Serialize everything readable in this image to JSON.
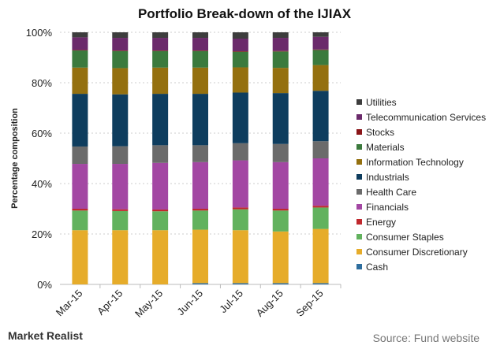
{
  "chart_data": {
    "type": "bar",
    "stacked": true,
    "title": "Portfolio Break-down of the IJIAX",
    "ylabel": "Percentage composition",
    "xlabel": "",
    "ylim": [
      0,
      100
    ],
    "yticks": [
      "0%",
      "20%",
      "40%",
      "60%",
      "80%",
      "100%"
    ],
    "grid": true,
    "legend": "right",
    "categories": [
      "Mar-15",
      "Apr-15",
      "May-15",
      "Jun-15",
      "Jul-15",
      "Aug-15",
      "Sep-15"
    ],
    "series": [
      {
        "name": "Cash",
        "color": "#2e6e9e",
        "values": [
          0,
          0,
          0,
          0.5,
          0.5,
          0.5,
          0.5
        ]
      },
      {
        "name": "Consumer Discretionary",
        "color": "#e6ac2a",
        "values": [
          21.5,
          21.5,
          21.5,
          21.2,
          21,
          20.5,
          21.5
        ]
      },
      {
        "name": "Consumer Staples",
        "color": "#62b25e",
        "values": [
          7.8,
          7.6,
          7.5,
          7.6,
          8.3,
          8.3,
          8.5
        ]
      },
      {
        "name": "Energy",
        "color": "#c0282d",
        "values": [
          0.7,
          0.7,
          0.7,
          0.7,
          0.7,
          0.7,
          0.7
        ]
      },
      {
        "name": "Financials",
        "color": "#a347a3",
        "values": [
          17.8,
          18,
          18.5,
          18.5,
          18.7,
          18.5,
          18.8
        ]
      },
      {
        "name": "Health Care",
        "color": "#6b6b6b",
        "values": [
          6.9,
          7,
          7,
          6.7,
          6.8,
          7.2,
          6.8
        ]
      },
      {
        "name": "Industrials",
        "color": "#0e3d5e",
        "values": [
          20.9,
          20.6,
          20.4,
          20.4,
          20.1,
          20.2,
          20
        ]
      },
      {
        "name": "Information Technology",
        "color": "#94700f",
        "values": [
          10.4,
          10.4,
          10.4,
          10.4,
          10,
          10,
          10.2
        ]
      },
      {
        "name": "Materials",
        "color": "#3b7a3d",
        "values": [
          6.8,
          6.8,
          6.6,
          6.6,
          6.2,
          6.5,
          6
        ]
      },
      {
        "name": "Stocks",
        "color": "#8a1518",
        "values": [
          0.2,
          0.2,
          0.2,
          0.2,
          0.2,
          0.2,
          0.2
        ]
      },
      {
        "name": "Telecommunication Services",
        "color": "#6b2a6b",
        "values": [
          5,
          5,
          5,
          5,
          5,
          5.2,
          5
        ]
      },
      {
        "name": "Utilities",
        "color": "#3d3d3d",
        "values": [
          2,
          2.2,
          2.2,
          2.2,
          2.5,
          2.2,
          1.8
        ]
      }
    ]
  },
  "footer": {
    "brand": "Market Realist",
    "source": "Source: Fund website"
  }
}
